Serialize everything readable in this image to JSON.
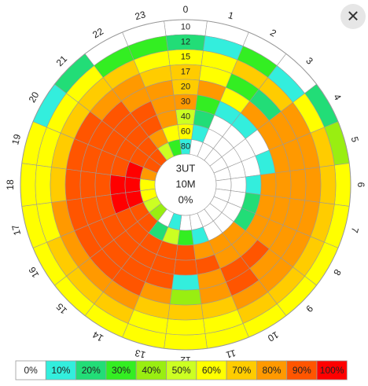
{
  "chart_data": {
    "type": "polarheatmap",
    "center_labels": [
      "3UT",
      "10M",
      "0%"
    ],
    "categories": [
      "0",
      "1",
      "2",
      "3",
      "4",
      "5",
      "6",
      "7",
      "8",
      "9",
      "10",
      "11",
      "12",
      "13",
      "14",
      "15",
      "16",
      "17",
      "18",
      "19",
      "20",
      "21",
      "22",
      "23"
    ],
    "rings": [
      "10",
      "12",
      "15",
      "17",
      "20",
      "30",
      "40",
      "60",
      "80"
    ],
    "values": [
      [
        0,
        0,
        0,
        0,
        20,
        40,
        60,
        60,
        60,
        60,
        60,
        60,
        60,
        60,
        60,
        60,
        60,
        60,
        60,
        60,
        10,
        20,
        0,
        0
      ],
      [
        20,
        10,
        30,
        10,
        60,
        70,
        70,
        70,
        70,
        70,
        70,
        60,
        60,
        60,
        70,
        70,
        70,
        60,
        60,
        60,
        60,
        60,
        30,
        30
      ],
      [
        60,
        60,
        70,
        70,
        80,
        80,
        80,
        80,
        80,
        80,
        80,
        70,
        70,
        70,
        80,
        80,
        80,
        80,
        70,
        70,
        70,
        70,
        70,
        60
      ],
      [
        70,
        60,
        30,
        20,
        80,
        80,
        80,
        80,
        80,
        80,
        90,
        80,
        40,
        80,
        90,
        90,
        90,
        90,
        90,
        90,
        90,
        80,
        80,
        70
      ],
      [
        70,
        80,
        60,
        80,
        80,
        80,
        80,
        80,
        80,
        90,
        90,
        80,
        10,
        90,
        90,
        90,
        90,
        90,
        90,
        90,
        90,
        90,
        80,
        80
      ],
      [
        80,
        30,
        10,
        10,
        0,
        10,
        80,
        80,
        80,
        80,
        80,
        90,
        90,
        90,
        90,
        90,
        90,
        90,
        90,
        90,
        90,
        90,
        90,
        80
      ],
      [
        50,
        20,
        0,
        0,
        0,
        0,
        10,
        20,
        20,
        80,
        80,
        80,
        90,
        90,
        90,
        90,
        90,
        100,
        100,
        90,
        90,
        90,
        90,
        80
      ],
      [
        60,
        10,
        0,
        0,
        0,
        0,
        0,
        0,
        0,
        0,
        0,
        10,
        30,
        50,
        20,
        90,
        90,
        100,
        100,
        100,
        90,
        90,
        80,
        60
      ],
      [
        10,
        0,
        0,
        0,
        0,
        0,
        0,
        0,
        0,
        0,
        0,
        0,
        0,
        10,
        0,
        40,
        50,
        60,
        60,
        80,
        90,
        90,
        50,
        30
      ]
    ],
    "legend": [
      {
        "value": 0,
        "label": "0%",
        "color": "#ffffff"
      },
      {
        "value": 10,
        "label": "10%",
        "color": "#33eedd"
      },
      {
        "value": 20,
        "label": "20%",
        "color": "#22dd77"
      },
      {
        "value": 30,
        "label": "30%",
        "color": "#33ee22"
      },
      {
        "value": 40,
        "label": "40%",
        "color": "#99ee11"
      },
      {
        "value": 50,
        "label": "50%",
        "color": "#ccff22"
      },
      {
        "value": 60,
        "label": "60%",
        "color": "#ffff00"
      },
      {
        "value": 70,
        "label": "70%",
        "color": "#ffcc00"
      },
      {
        "value": 80,
        "label": "80%",
        "color": "#ff9900"
      },
      {
        "value": 90,
        "label": "90%",
        "color": "#ff5500"
      },
      {
        "value": 100,
        "label": "100%",
        "color": "#ff0000"
      }
    ]
  },
  "close_button": "✕"
}
